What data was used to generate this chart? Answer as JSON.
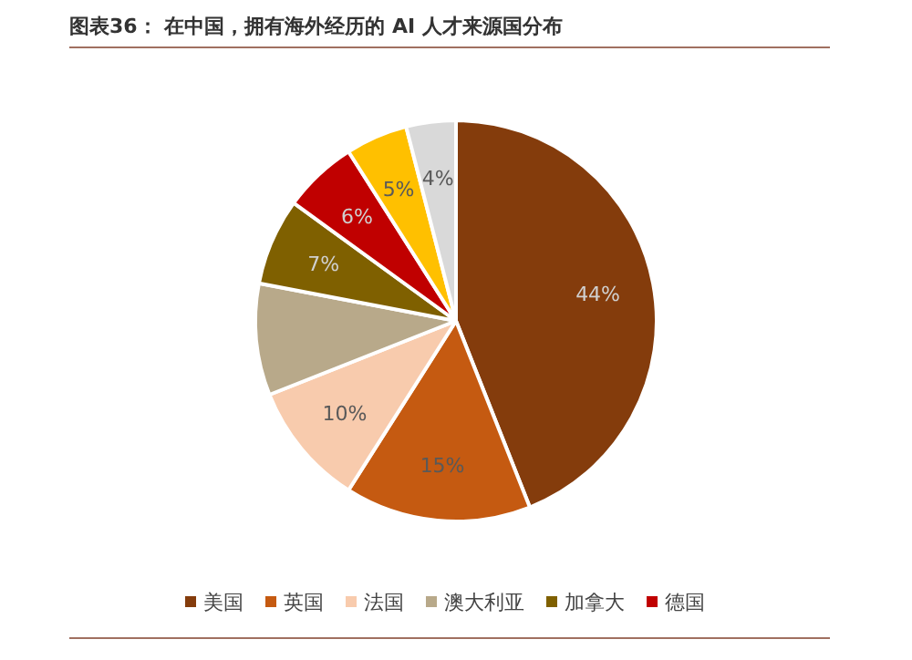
{
  "chart_data": {
    "type": "pie",
    "title": "图表36：  在中国，拥有海外经历的 AI 人才来源国分布",
    "categories": [
      "美国",
      "英国",
      "法国",
      "澳大利亚",
      "加拿大",
      "德国",
      null,
      null
    ],
    "values": [
      44,
      15,
      10,
      9,
      7,
      6,
      5,
      4
    ],
    "value_labels": [
      "44%",
      "15%",
      "10%",
      null,
      "7%",
      "6%",
      "5%",
      "4%"
    ],
    "colors": [
      "#843c0c",
      "#c55a11",
      "#f8cbad",
      "#b8a98a",
      "#7f6000",
      "#c00000",
      "#ffc000",
      "#d9d9d9"
    ],
    "legend": "bottom"
  }
}
